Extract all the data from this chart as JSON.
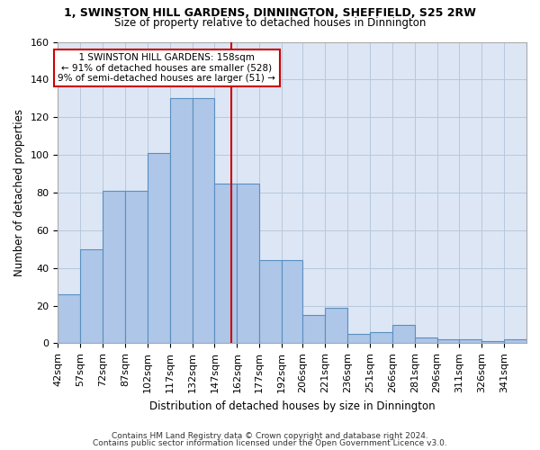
{
  "title1": "1, SWINSTON HILL GARDENS, DINNINGTON, SHEFFIELD, S25 2RW",
  "title2": "Size of property relative to detached houses in Dinnington",
  "xlabel": "Distribution of detached houses by size in Dinnington",
  "ylabel": "Number of detached properties",
  "footer1": "Contains HM Land Registry data © Crown copyright and database right 2024.",
  "footer2": "Contains public sector information licensed under the Open Government Licence v3.0.",
  "annotation_line1": "  1 SWINSTON HILL GARDENS: 158sqm  ",
  "annotation_line2": "← 91% of detached houses are smaller (528)",
  "annotation_line3": "9% of semi-detached houses are larger (51) →",
  "bar_heights": [
    26,
    50,
    81,
    81,
    101,
    130,
    130,
    85,
    85,
    44,
    44,
    15,
    19,
    5,
    6,
    10,
    3,
    2,
    2,
    1,
    2
  ],
  "bar_color": "#aec6e8",
  "bar_edge_color": "#5a8fc0",
  "vline_x": 158,
  "vline_color": "#cc0000",
  "annotation_box_color": "#cc0000",
  "background_color": "#ffffff",
  "plot_bg_color": "#dce6f5",
  "grid_color": "#b8c8dc",
  "ylim": [
    0,
    160
  ],
  "xlim": [
    42,
    356
  ],
  "bin_edges": [
    42,
    57,
    72,
    87,
    102,
    117,
    132,
    147,
    162,
    177,
    192,
    206,
    221,
    236,
    251,
    266,
    281,
    296,
    311,
    326,
    341,
    356
  ],
  "bar_labels": [
    "42sqm",
    "57sqm",
    "72sqm",
    "87sqm",
    "102sqm",
    "117sqm",
    "132sqm",
    "147sqm",
    "162sqm",
    "177sqm",
    "192sqm",
    "206sqm",
    "221sqm",
    "236sqm",
    "251sqm",
    "266sqm",
    "281sqm",
    "296sqm",
    "311sqm",
    "326sqm",
    "341sqm"
  ]
}
